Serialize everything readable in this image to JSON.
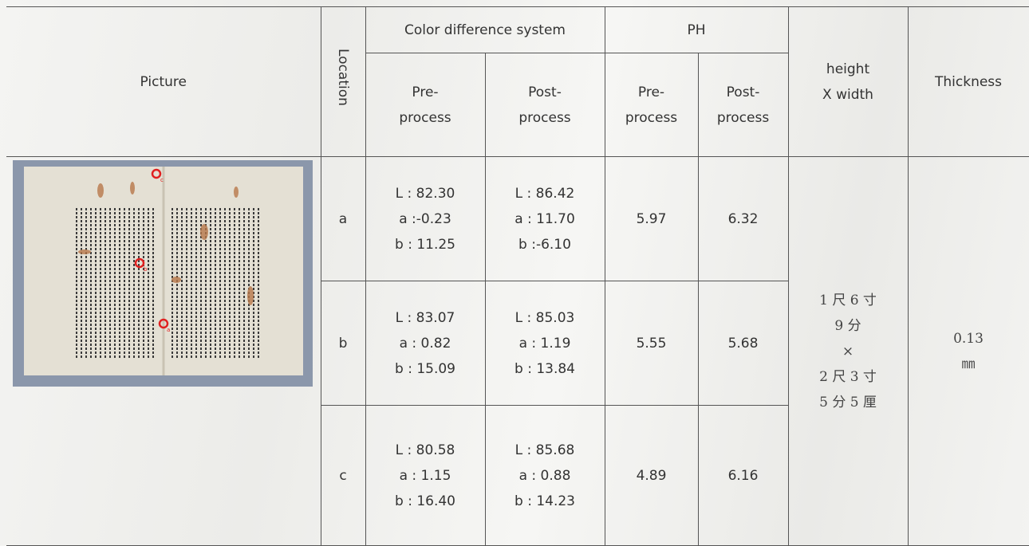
{
  "header": {
    "picture": "Picture",
    "location": "Location",
    "color_group": "Color difference system",
    "ph_group": "PH",
    "color_pre": [
      "Pre-",
      "process"
    ],
    "color_post": [
      "Post-",
      "process"
    ],
    "ph_pre": [
      "Pre-",
      "process"
    ],
    "ph_post": [
      "Post-",
      "process"
    ],
    "size": [
      "height",
      "X width"
    ],
    "thickness": "Thickness"
  },
  "picture_markers": [
    "c",
    "b",
    "a"
  ],
  "rows": [
    {
      "location": "a",
      "color_pre": [
        "L : 82.30",
        "a :-0.23",
        "b : 11.25"
      ],
      "color_post": [
        "L : 86.42",
        "a : 11.70",
        "b :-6.10"
      ],
      "ph_pre": "5.97",
      "ph_post": "6.32"
    },
    {
      "location": "b",
      "color_pre": [
        "L : 83.07",
        "a : 0.82",
        "b : 15.09"
      ],
      "color_post": [
        "L : 85.03",
        "a : 1.19",
        "b : 13.84"
      ],
      "ph_pre": "5.55",
      "ph_post": "5.68"
    },
    {
      "location": "c",
      "color_pre": [
        "L : 80.58",
        "a : 1.15",
        "b : 16.40"
      ],
      "color_post": [
        "L : 85.68",
        "a : 0.88",
        "b : 14.23"
      ],
      "ph_pre": "4.89",
      "ph_post": "6.16"
    }
  ],
  "size": [
    "1 尺 6 寸",
    "9 分",
    "×",
    "2 尺 3 寸",
    "5 分 5 厘"
  ],
  "thickness": [
    "0.13",
    "㎜"
  ]
}
